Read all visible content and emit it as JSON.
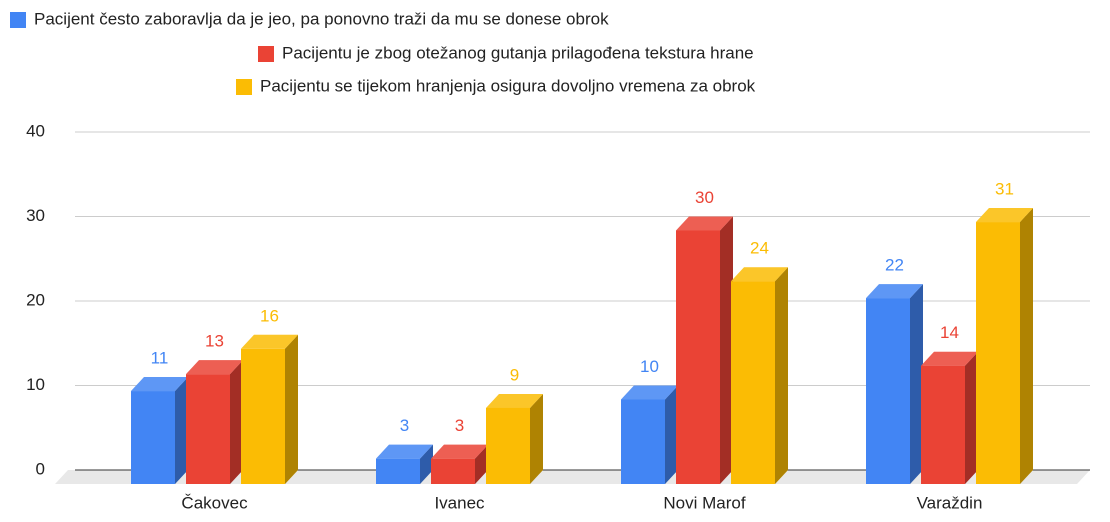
{
  "chart_data": {
    "type": "bar3d",
    "categories": [
      "Čakovec",
      "Ivanec",
      "Novi Marof",
      "Varaždin"
    ],
    "series": [
      {
        "name": "Pacijent često zaboravlja da je jeo, pa ponovno traži da mu se donese obrok",
        "color": "#4285f4",
        "values": [
          11,
          3,
          10,
          22
        ]
      },
      {
        "name": "Pacijentu je zbog otežanog gutanja prilagođena tekstura hrane",
        "color": "#ea4335",
        "values": [
          13,
          3,
          30,
          14
        ]
      },
      {
        "name": "Pacijentu se tijekom hranjenja osigura dovoljno vremena za obrok",
        "color": "#fbbc04",
        "values": [
          16,
          9,
          24,
          31
        ]
      }
    ],
    "ylim": [
      0,
      40
    ],
    "yticks": [
      0,
      10,
      20,
      30,
      40
    ],
    "grid": true,
    "legend": "top"
  }
}
